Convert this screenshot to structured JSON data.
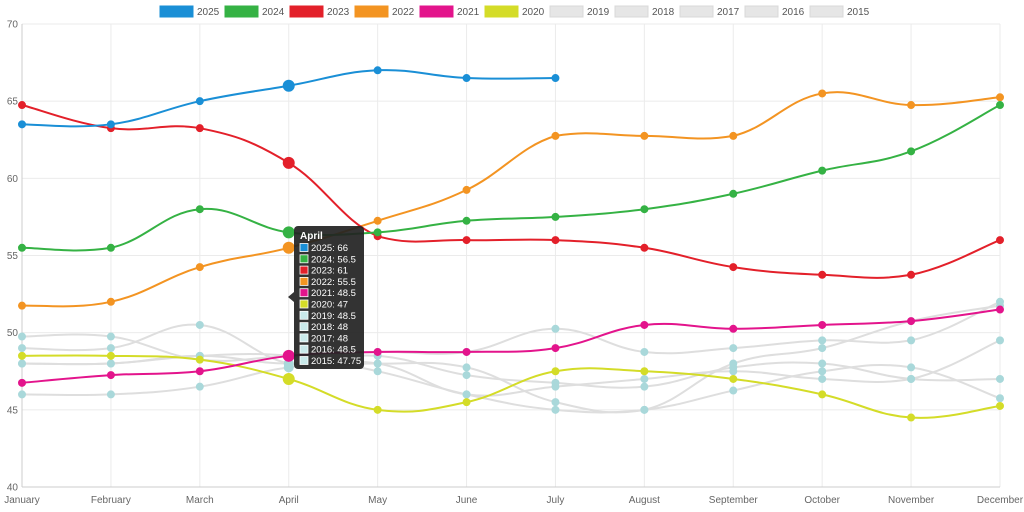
{
  "chart_data": {
    "type": "line",
    "categories": [
      "January",
      "February",
      "March",
      "April",
      "May",
      "June",
      "July",
      "August",
      "September",
      "October",
      "November",
      "December"
    ],
    "ylim": [
      40,
      70
    ],
    "yticks": [
      40,
      45,
      50,
      55,
      60,
      65,
      70
    ],
    "grid": true,
    "legend_position": "top",
    "series": [
      {
        "name": "2025",
        "color": "#1a8fd6",
        "active": true,
        "values": [
          63.5,
          63.5,
          65,
          66,
          67,
          66.5,
          66.5,
          null,
          null,
          null,
          null,
          null
        ]
      },
      {
        "name": "2024",
        "color": "#35b244",
        "active": true,
        "values": [
          55.5,
          55.5,
          58,
          56.5,
          56.5,
          57.25,
          57.5,
          58,
          59,
          60.5,
          61.75,
          64.75
        ]
      },
      {
        "name": "2023",
        "color": "#e3202a",
        "active": true,
        "values": [
          64.75,
          63.25,
          63.25,
          61,
          56.25,
          56,
          56,
          55.5,
          54.25,
          53.75,
          53.75,
          56
        ]
      },
      {
        "name": "2022",
        "color": "#f39422",
        "active": true,
        "values": [
          51.75,
          52,
          54.25,
          55.5,
          57.25,
          59.25,
          62.75,
          62.75,
          62.75,
          65.5,
          64.75,
          65.25
        ]
      },
      {
        "name": "2021",
        "color": "#e3148c",
        "active": true,
        "values": [
          46.75,
          47.25,
          47.5,
          48.5,
          48.75,
          48.75,
          49,
          50.5,
          50.25,
          50.5,
          50.75,
          51.5
        ]
      },
      {
        "name": "2020",
        "color": "#d4dc28",
        "active": true,
        "values": [
          48.5,
          48.5,
          48.25,
          47,
          45,
          45.5,
          47.5,
          47.5,
          47,
          46,
          44.5,
          45.25
        ]
      },
      {
        "name": "2019",
        "color": "#dddddd",
        "active": false,
        "values": [
          49.75,
          49.75,
          48.25,
          48.5,
          48.75,
          48.75,
          50.25,
          48.75,
          49,
          49.5,
          49.5,
          52
        ]
      },
      {
        "name": "2018",
        "color": "#dddddd",
        "active": false,
        "values": [
          49,
          49,
          50.5,
          48,
          48,
          47.75,
          45.5,
          45,
          48,
          49,
          50.75,
          51.75
        ]
      },
      {
        "name": "2017",
        "color": "#dddddd",
        "active": false,
        "values": [
          48,
          48,
          48.5,
          48,
          48.5,
          47.25,
          46.75,
          46.5,
          47.75,
          48,
          47,
          47
        ]
      },
      {
        "name": "2016",
        "color": "#dddddd",
        "active": false,
        "values": [
          48,
          48,
          48.5,
          48.5,
          47.5,
          46,
          45,
          45,
          46.25,
          47.5,
          47.75,
          45.75
        ]
      },
      {
        "name": "2015",
        "color": "#dddddd",
        "active": false,
        "values": [
          46,
          46,
          46.5,
          47.75,
          48,
          46,
          46.5,
          47,
          47.5,
          47,
          47,
          49.5
        ]
      }
    ],
    "tooltip": {
      "title": "April",
      "lines": [
        "2025: 66",
        "2024: 56.5",
        "2023: 61",
        "2022: 55.5",
        "2021: 48.5",
        "2020: 47",
        "2019: 48.5",
        "2018: 48",
        "2017: 48",
        "2016: 48.5",
        "2015: 47.75"
      ]
    }
  }
}
